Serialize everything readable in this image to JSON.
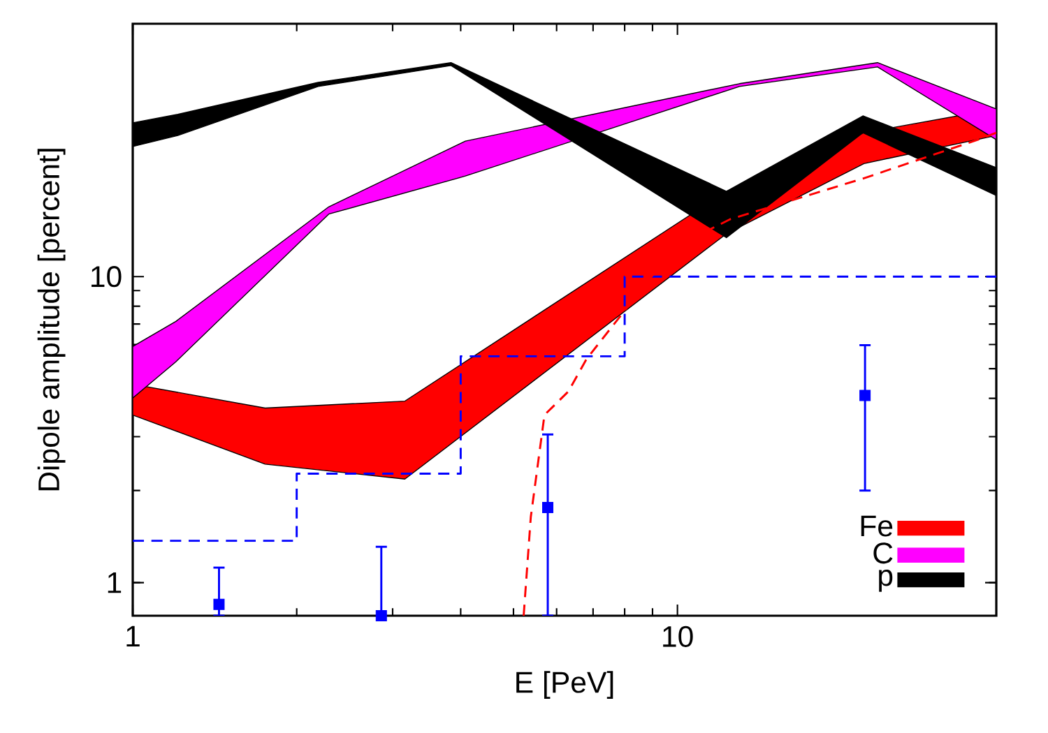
{
  "chart_data": {
    "type": "area",
    "xlabel": "E [PeV]",
    "ylabel": "Dipole amplitude [percent]",
    "log": "xy",
    "xlim": [
      1,
      38.5
    ],
    "ylim": [
      0.78,
      67
    ],
    "xticks": [
      1,
      10
    ],
    "yticks": [
      1,
      10
    ],
    "legend": "bottom right",
    "series": [
      {
        "name": "Fe",
        "color": "#ff0000",
        "x": [
          1,
          1.75,
          3.16,
          12.3,
          22,
          38.5
        ],
        "values": [
          null,
          null,
          null,
          null,
          null,
          null
        ],
        "upper": [
          4.45,
          3.72,
          3.92,
          19.0,
          29.5,
          35.3
        ],
        "lower": [
          3.53,
          2.44,
          2.18,
          13.8,
          23.4,
          28.9
        ]
      },
      {
        "name": "C",
        "color": "#ff00ff",
        "x": [
          1,
          1.2,
          2.29,
          4.08,
          13.0,
          23.3,
          38.5
        ],
        "values": [
          null,
          null,
          null,
          null,
          null,
          null,
          null
        ],
        "upper": [
          5.91,
          7.14,
          16.9,
          27.7,
          42.7,
          50.0,
          35.3
        ],
        "lower": [
          4.01,
          5.27,
          16.0,
          21.3,
          41.8,
          48.4,
          28.0
        ]
      },
      {
        "name": "p",
        "color": "#000000",
        "x": [
          1,
          1.21,
          2.19,
          3.84,
          12.3,
          21.9,
          38.5
        ],
        "values": [
          null,
          null,
          null,
          null,
          null,
          null,
          null
        ],
        "upper": [
          31.8,
          33.9,
          43.1,
          50.0,
          19.0,
          33.5,
          22.7
        ],
        "lower": [
          26.6,
          28.9,
          41.8,
          48.9,
          13.4,
          29.5,
          18.4
        ]
      },
      {
        "type": "step",
        "color": "#0000ff",
        "line_style": "dashed",
        "x": [
          1,
          2,
          4,
          8,
          38.5
        ],
        "values": [
          1.37,
          2.27,
          5.49,
          10,
          10
        ]
      },
      {
        "type": "line",
        "color": "#ff0000",
        "line_style": "dashed",
        "x": [
          5.22,
          5.38,
          5.7,
          6.31,
          6.81,
          9.0,
          10.7,
          12.5,
          21.9,
          35.6,
          38.5
        ],
        "values": [
          0.78,
          1.64,
          3.53,
          4.22,
          5.38,
          10.1,
          13.4,
          15.4,
          20.9,
          28.0,
          29.5
        ]
      },
      {
        "type": "scatter",
        "color": "#0000ff",
        "marker": "square",
        "x": [
          1.44,
          2.86,
          5.78,
          22.1
        ],
        "values": [
          0.85,
          0.78,
          1.76,
          4.09
        ],
        "errors": [
          [
            0.78,
            1.12
          ],
          [
            0.78,
            1.31
          ],
          [
            0.78,
            3.05
          ],
          [
            2.0,
            5.97
          ]
        ]
      }
    ]
  }
}
